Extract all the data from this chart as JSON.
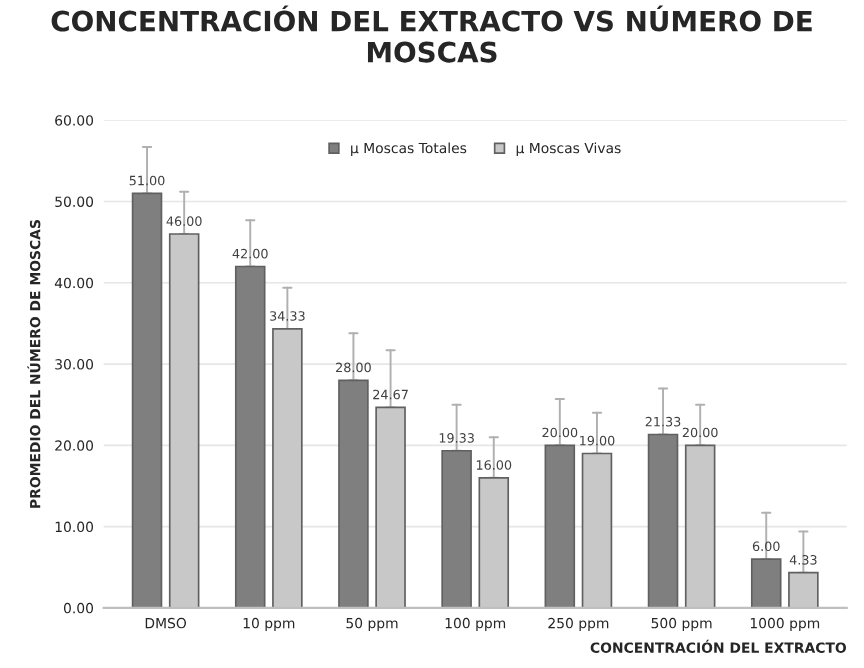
{
  "chart_data": {
    "type": "bar",
    "title": "CONCENTRACIÓN DEL EXTRACTO VS NÚMERO DE MOSCAS",
    "xlabel": "CONCENTRACIÓN DEL EXTRACTO",
    "ylabel": "PROMEDIO DEL NÚMERO DE MOSCAS",
    "categories": [
      "DMSO",
      "10 ppm",
      "50 ppm",
      "100 ppm",
      "250 ppm",
      "500 ppm",
      "1000 ppm"
    ],
    "series": [
      {
        "name": "µ Moscas Totales",
        "color": "#7f7f7f",
        "values": [
          51.0,
          42.0,
          28.0,
          19.33,
          20.0,
          21.33,
          6.0
        ],
        "value_labels": [
          "51.00",
          "42.00",
          "28.00",
          "19.33",
          "20.00",
          "21.33",
          "6.00"
        ],
        "errors": [
          [
            51.0,
            56.7
          ],
          [
            42.0,
            47.7
          ],
          [
            28.0,
            33.8
          ],
          [
            19.33,
            25.0
          ],
          [
            20.0,
            25.7
          ],
          [
            21.33,
            27.0
          ],
          [
            6.0,
            11.7
          ]
        ]
      },
      {
        "name": "µ Moscas Vivas",
        "color": "#c8c8c8",
        "values": [
          46.0,
          34.33,
          24.67,
          16.0,
          19.0,
          20.0,
          4.33
        ],
        "value_labels": [
          "46.00",
          "34.33",
          "24.67",
          "16.00",
          "19.00",
          "20.00",
          "4.33"
        ],
        "errors": [
          [
            46.0,
            51.2
          ],
          [
            34.33,
            39.4
          ],
          [
            24.67,
            31.7
          ],
          [
            16.0,
            21.0
          ],
          [
            19.0,
            24.0
          ],
          [
            20.0,
            25.0
          ],
          [
            4.33,
            9.4
          ]
        ]
      }
    ],
    "ylim": [
      0,
      60
    ],
    "yticks": [
      {
        "value": 0,
        "label": "0.00"
      },
      {
        "value": 10,
        "label": "10.00"
      },
      {
        "value": 20,
        "label": "20.00"
      },
      {
        "value": 30,
        "label": "30.00"
      },
      {
        "value": 40,
        "label": "40.00"
      },
      {
        "value": 50,
        "label": "50.00"
      },
      {
        "value": 60,
        "label": "60.00"
      }
    ],
    "grid": "y",
    "legend": "top"
  }
}
